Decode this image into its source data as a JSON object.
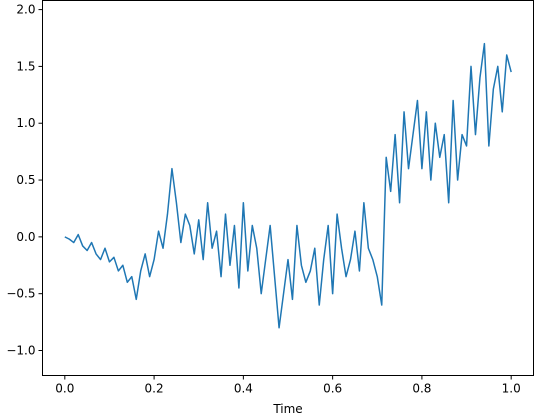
{
  "chart_data": {
    "type": "line",
    "title": "",
    "xlabel": "Time",
    "ylabel": "",
    "xlim": [
      -0.05,
      1.05
    ],
    "ylim": [
      -1.22,
      2.08
    ],
    "xticks": [
      0.0,
      0.2,
      0.4,
      0.6,
      0.8,
      1.0
    ],
    "xtick_labels": [
      "0.0",
      "0.2",
      "0.4",
      "0.6",
      "0.8",
      "1.0"
    ],
    "yticks": [
      -1.0,
      -0.5,
      0.0,
      0.5,
      1.0,
      1.5,
      2.0
    ],
    "ytick_labels": [
      "−1.0",
      "−0.5",
      "0.0",
      "0.5",
      "1.0",
      "1.5",
      "2.0"
    ],
    "grid": false,
    "legend": "none",
    "line_color": "#1f77b4",
    "series": [
      {
        "x": [
          0.0,
          0.01,
          0.02,
          0.03,
          0.04,
          0.05,
          0.06,
          0.07,
          0.08,
          0.09,
          0.1,
          0.11,
          0.12,
          0.13,
          0.14,
          0.15,
          0.16,
          0.17,
          0.18,
          0.19,
          0.2,
          0.21,
          0.22,
          0.23,
          0.24,
          0.25,
          0.26,
          0.27,
          0.28,
          0.29,
          0.3,
          0.31,
          0.32,
          0.33,
          0.34,
          0.35,
          0.36,
          0.37,
          0.38,
          0.39,
          0.4,
          0.41,
          0.42,
          0.43,
          0.44,
          0.45,
          0.46,
          0.47,
          0.48,
          0.49,
          0.5,
          0.51,
          0.52,
          0.53,
          0.54,
          0.55,
          0.56,
          0.57,
          0.58,
          0.59,
          0.6,
          0.61,
          0.62,
          0.63,
          0.64,
          0.65,
          0.66,
          0.67,
          0.68,
          0.69,
          0.7,
          0.71,
          0.72,
          0.73,
          0.74,
          0.75,
          0.76,
          0.77,
          0.78,
          0.79,
          0.8,
          0.81,
          0.82,
          0.83,
          0.84,
          0.85,
          0.86,
          0.87,
          0.88,
          0.89,
          0.9,
          0.91,
          0.92,
          0.93,
          0.94,
          0.95,
          0.96,
          0.97,
          0.98,
          0.99,
          1.0
        ],
        "y": [
          0.0,
          -0.02,
          -0.05,
          0.02,
          -0.08,
          -0.12,
          -0.05,
          -0.15,
          -0.2,
          -0.1,
          -0.22,
          -0.18,
          -0.3,
          -0.25,
          -0.4,
          -0.35,
          -0.55,
          -0.3,
          -0.15,
          -0.35,
          -0.2,
          0.05,
          -0.1,
          0.2,
          0.6,
          0.3,
          -0.05,
          0.2,
          0.1,
          -0.15,
          0.15,
          -0.2,
          0.3,
          -0.1,
          0.05,
          -0.35,
          0.2,
          -0.25,
          0.1,
          -0.45,
          0.3,
          -0.3,
          0.1,
          -0.1,
          -0.5,
          -0.2,
          0.1,
          -0.35,
          -0.8,
          -0.5,
          -0.2,
          -0.55,
          0.1,
          -0.25,
          -0.4,
          -0.3,
          -0.1,
          -0.6,
          -0.2,
          0.1,
          -0.5,
          0.2,
          -0.1,
          -0.35,
          -0.2,
          0.05,
          -0.3,
          0.3,
          -0.1,
          -0.2,
          -0.35,
          -0.6,
          0.7,
          0.4,
          0.9,
          0.3,
          1.1,
          0.6,
          0.9,
          1.2,
          0.6,
          1.1,
          0.5,
          1.0,
          0.7,
          0.9,
          0.3,
          1.2,
          0.5,
          0.9,
          0.8,
          1.5,
          0.9,
          1.4,
          1.7,
          0.8,
          1.3,
          1.5,
          1.1,
          1.6,
          1.45
        ]
      }
    ]
  }
}
